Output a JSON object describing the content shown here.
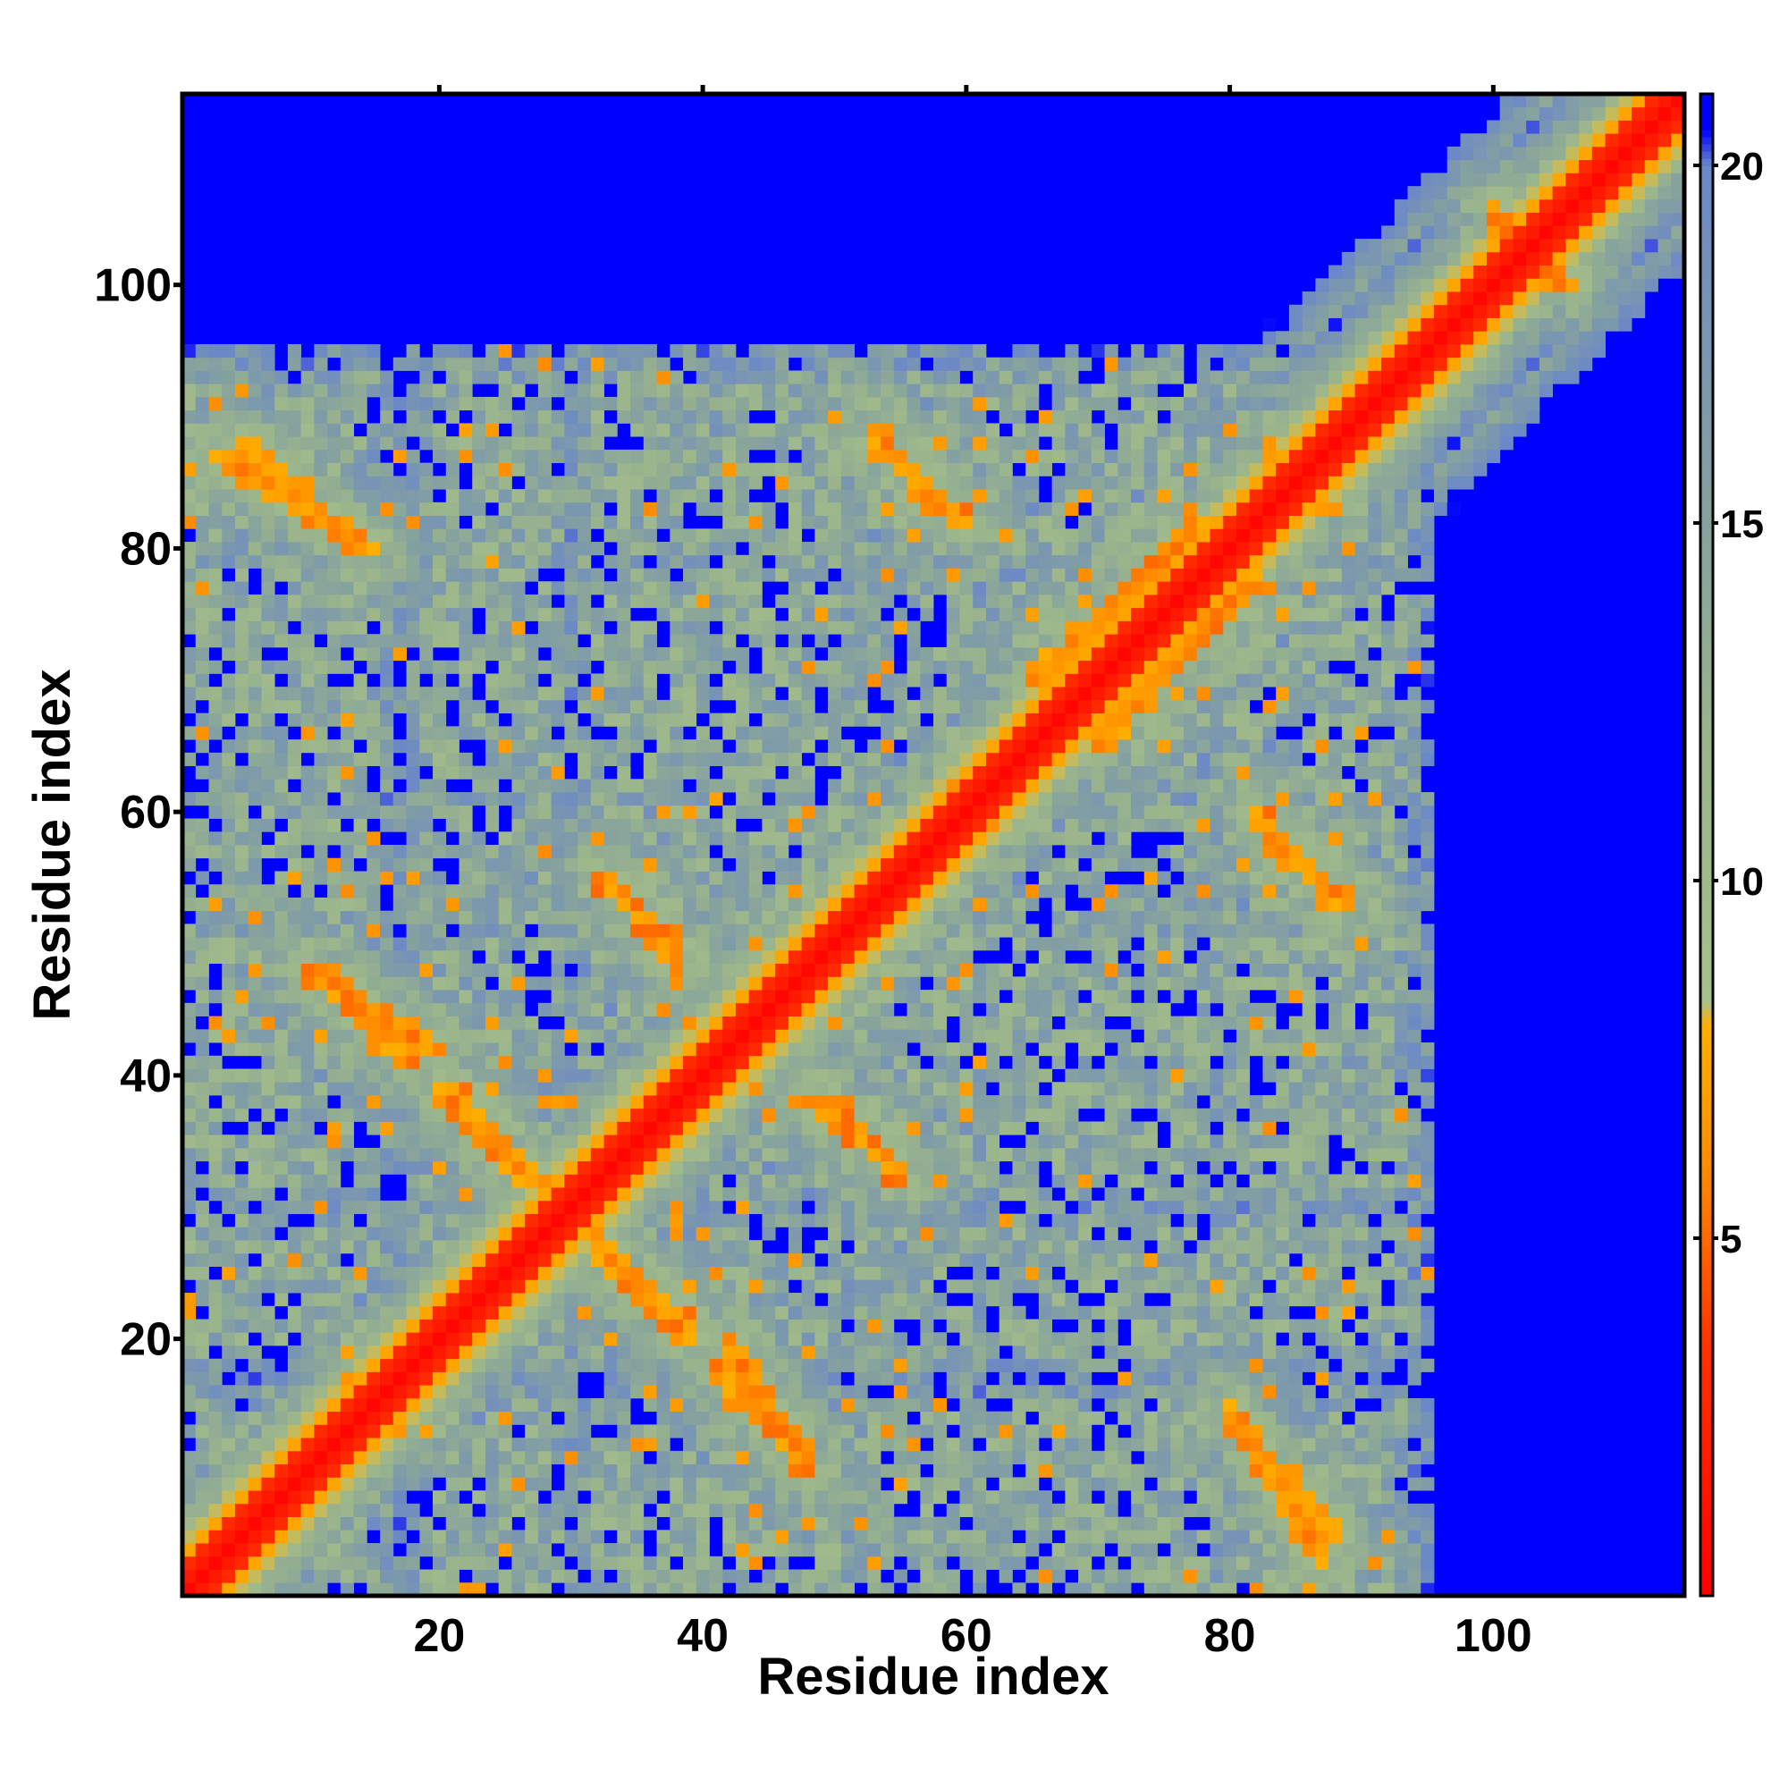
{
  "chart_data": {
    "type": "heatmap",
    "title": "",
    "xlabel": "Residue index",
    "ylabel": "Residue index",
    "xlim": [
      0.5,
      114.5
    ],
    "ylim": [
      0.5,
      114.5
    ],
    "n_residues": 114,
    "x_ticks": [
      20,
      40,
      60,
      80,
      100
    ],
    "y_ticks": [
      20,
      40,
      60,
      80,
      100
    ],
    "colorbar": {
      "range": [
        0,
        21
      ],
      "ticks": [
        5,
        10,
        15,
        20
      ],
      "palette": [
        {
          "value": 0,
          "color": "#ff0000"
        },
        {
          "value": 3.5,
          "color": "#ff3300"
        },
        {
          "value": 6,
          "color": "#ff8c00"
        },
        {
          "value": 8,
          "color": "#ffb000"
        },
        {
          "value": 8.3,
          "color": "#a8c08c"
        },
        {
          "value": 12,
          "color": "#9ab48c"
        },
        {
          "value": 15,
          "color": "#86a29e"
        },
        {
          "value": 18,
          "color": "#7894b4"
        },
        {
          "value": 20,
          "color": "#6b88c8"
        },
        {
          "value": 20.5,
          "color": "#0000ff"
        }
      ],
      "cutoff_color": "#0000ff",
      "cutoff": 20.5
    },
    "grid": false,
    "features": [
      {
        "name": "diagonal",
        "description": "main diagonal band of near-zero distances"
      },
      {
        "name": "antiparallel-contacts",
        "pairs": [
          {
            "i_range": [
              5,
              14
            ],
            "j_range": [
              88,
              80
            ]
          },
          {
            "i_range": [
              21,
              27
            ],
            "j_range": [
              39,
              32
            ]
          },
          {
            "i_range": [
              32,
              39
            ],
            "j_range": [
              27,
              20
            ]
          },
          {
            "i_range": [
              33,
              38
            ],
            "j_range": [
              55,
              48
            ]
          },
          {
            "i_range": [
              41,
              48
            ],
            "j_range": [
              18,
              10
            ]
          },
          {
            "i_range": [
              50,
              55
            ],
            "j_range": [
              38,
              32
            ]
          },
          {
            "i_range": [
              53,
              58
            ],
            "j_range": [
              89,
              83
            ]
          },
          {
            "i_range": [
              80,
              87
            ],
            "j_range": [
              15,
              3
            ]
          },
          {
            "i_range": [
              82,
              88
            ],
            "j_range": [
              60,
              53
            ]
          },
          {
            "i_range": [
              100,
              104
            ],
            "j_range": [
              106,
              100
            ]
          }
        ]
      },
      {
        "name": "parallel-contacts",
        "pairs": [
          {
            "i_range": [
              65,
              78
            ],
            "j_range": [
              70,
              82
            ]
          },
          {
            "i_range": [
              10,
              20
            ],
            "j_range": [
              48,
              42
            ]
          }
        ]
      }
    ]
  }
}
